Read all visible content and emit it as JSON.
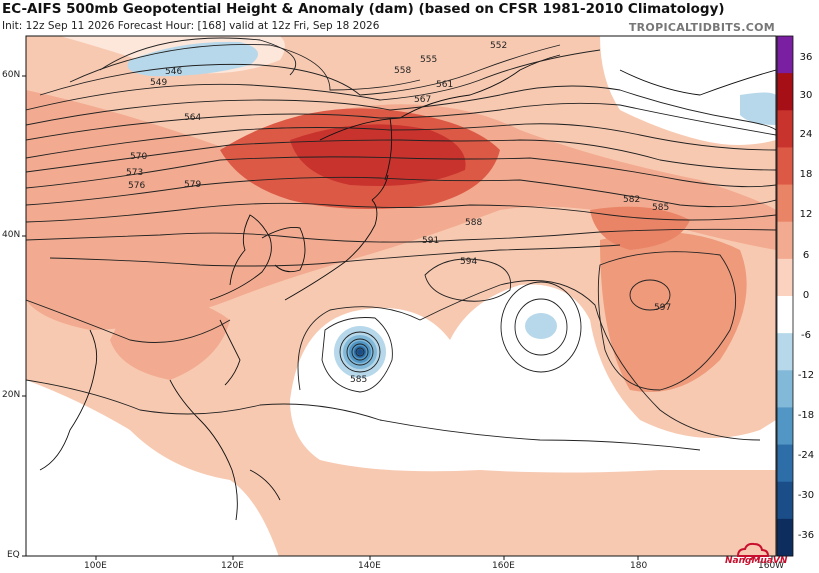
{
  "header": {
    "title": "EC-AIFS 500mb Geopotential Height & Anomaly (dam) (based on CFSR 1981-2010 Climatology)",
    "subtitle": "Init: 12z Sep 11 2026   Forecast Hour: [168]   valid at 12z Fri, Sep 18 2026",
    "credit": "TROPICALTIDBITS.COM"
  },
  "map": {
    "lat_labels": [
      "60N",
      "40N",
      "20N",
      "EQ"
    ],
    "lon_labels": [
      "100E",
      "120E",
      "140E",
      "160E",
      "180",
      "160W"
    ],
    "contour_labels": [
      "546",
      "549",
      "552",
      "555",
      "558",
      "561",
      "564",
      "567",
      "570",
      "573",
      "576",
      "579",
      "582",
      "585",
      "588",
      "591",
      "594",
      "597"
    ],
    "typhoon_center_label": "585",
    "anticyclone_center_label": "597"
  },
  "colorbar": {
    "labels": [
      "36",
      "30",
      "24",
      "18",
      "12",
      "6",
      "0",
      "-6",
      "-12",
      "-18",
      "-24",
      "-30",
      "-36"
    ],
    "colors": [
      "#7b1fa2",
      "#a50f15",
      "#c8332e",
      "#dc5a45",
      "#ea8466",
      "#f2ab90",
      "#fad2bf",
      "#ffffff",
      "#b7d8ea",
      "#82b8d8",
      "#5196c4",
      "#2d6ea8",
      "#1b4e88",
      "#0c2d5e"
    ]
  },
  "watermark": {
    "text": "NangMuaVN",
    "color": "#c8102e"
  }
}
